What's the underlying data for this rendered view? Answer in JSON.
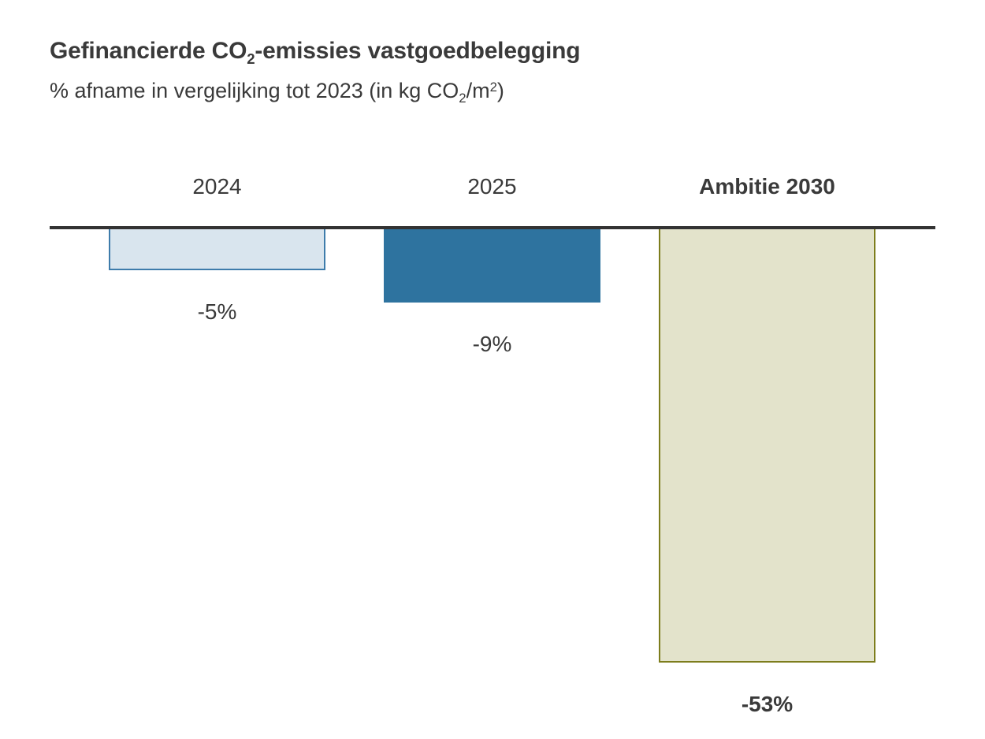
{
  "header": {
    "title_pre": "Gefinancierde CO",
    "title_sub": "2",
    "title_post": "-emissies vastgoedbelegging",
    "subtitle_pre": "% afname in vergelijking tot 2023 (in kg CO",
    "subtitle_sub": "2",
    "subtitle_mid": "/m",
    "subtitle_sup": "2",
    "subtitle_post": ")"
  },
  "chart_data": {
    "type": "bar",
    "title": "Gefinancierde CO2-emissies vastgoedbelegging",
    "subtitle": "% afname in vergelijking tot 2023 (in kg CO2/m2)",
    "categories": [
      "2024",
      "2025",
      "Ambitie 2030"
    ],
    "values": [
      -5,
      -9,
      -53
    ],
    "data_labels": [
      "-5%",
      "-9%",
      "-53%"
    ],
    "ylim": [
      -56,
      0
    ],
    "baseline": 0,
    "grid": false,
    "legend": false,
    "category_label_position": "above-baseline",
    "data_label_position": "below-bar",
    "axis_line_color": "#333333",
    "text_color": "#3a3a3a",
    "bar_styles": [
      {
        "fill": "#d9e5ee",
        "border": "#3e7cab",
        "bold_labels": false
      },
      {
        "fill": "#2e739f",
        "border": "#2e739f",
        "bold_labels": false
      },
      {
        "fill": "#e3e3cb",
        "border": "#7d7d1c",
        "bold_labels": true
      }
    ]
  }
}
